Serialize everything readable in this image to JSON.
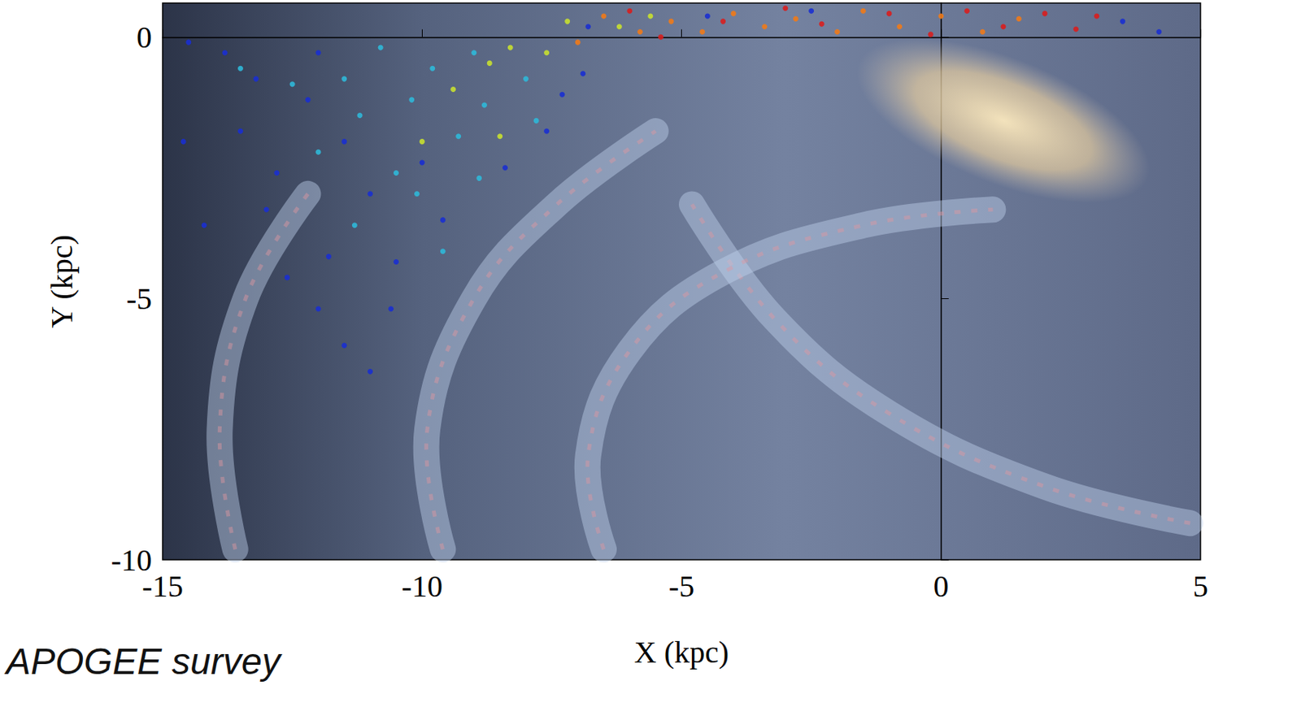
{
  "chart_data": {
    "type": "scatter",
    "annotation": "APOGEE survey",
    "x_label": "X (kpc)",
    "y_label": "Y (kpc)",
    "xlim": [
      -15,
      5
    ],
    "ylim": [
      -10,
      0.65
    ],
    "xticks": [
      -15,
      -10,
      -5,
      0,
      5
    ],
    "yticks": [
      -10,
      -5,
      0
    ],
    "grid": false,
    "marker": "circle",
    "series": [
      {
        "color": "#1a2fd0",
        "x": [
          -14.5,
          -13.8,
          -14.6,
          -13.5,
          -14.2,
          -13.0,
          -12.6,
          -12.0,
          -11.5,
          -11.0,
          -11.8,
          -12.8,
          -12.2,
          -11.0,
          -10.5,
          -10.0,
          -9.6,
          -13.2,
          -12.0,
          -11.5,
          -10.6,
          -7.3,
          -7.6,
          -8.4,
          -6.8,
          -6.9,
          -4.5,
          -2.5,
          3.5,
          4.2
        ],
        "y": [
          -0.1,
          -0.3,
          -2.0,
          -1.8,
          -3.6,
          -3.3,
          -4.6,
          -5.2,
          -5.9,
          -6.4,
          -4.2,
          -2.6,
          -1.2,
          -3.0,
          -4.3,
          -2.4,
          -3.5,
          -0.8,
          -0.3,
          -2.0,
          -5.2,
          -1.1,
          -1.8,
          -2.5,
          0.2,
          -0.7,
          0.4,
          0.5,
          0.3,
          0.1
        ]
      },
      {
        "color": "#2fb8d8",
        "x": [
          -13.5,
          -12.5,
          -11.5,
          -12.0,
          -11.2,
          -10.2,
          -9.8,
          -10.5,
          -9.3,
          -8.8,
          -9.0,
          -11.3,
          -10.1,
          -8.9,
          -9.6,
          -8.0,
          -7.8,
          -10.8
        ],
        "y": [
          -0.6,
          -0.9,
          -0.8,
          -2.2,
          -1.5,
          -1.2,
          -0.6,
          -2.6,
          -1.9,
          -1.3,
          -0.3,
          -3.6,
          -3.0,
          -2.7,
          -4.1,
          -0.8,
          -1.6,
          -0.2
        ]
      },
      {
        "color": "#c8e030",
        "x": [
          -8.7,
          -8.3,
          -7.6,
          -7.2,
          -9.4,
          -10.0,
          -8.5,
          -6.2,
          -5.6
        ],
        "y": [
          -0.5,
          -0.2,
          -0.3,
          0.3,
          -1.0,
          -2.0,
          -1.9,
          0.2,
          0.4
        ]
      },
      {
        "color": "#f07a18",
        "x": [
          -7.0,
          -6.5,
          -5.8,
          -5.2,
          -4.6,
          -4.0,
          -3.4,
          -2.8,
          -2.0,
          -1.5,
          -0.8,
          0.0,
          0.8,
          1.5
        ],
        "y": [
          -0.1,
          0.4,
          0.1,
          0.3,
          0.1,
          0.45,
          0.2,
          0.35,
          0.1,
          0.5,
          0.2,
          0.4,
          0.1,
          0.35
        ]
      },
      {
        "color": "#d81e1e",
        "x": [
          -6.0,
          -5.4,
          -4.2,
          -3.0,
          -2.3,
          -1.0,
          -0.2,
          0.5,
          1.2,
          2.0,
          2.6,
          3.0
        ],
        "y": [
          0.5,
          0.0,
          0.3,
          0.55,
          0.25,
          0.45,
          0.05,
          0.5,
          0.2,
          0.45,
          0.15,
          0.4
        ]
      }
    ]
  }
}
